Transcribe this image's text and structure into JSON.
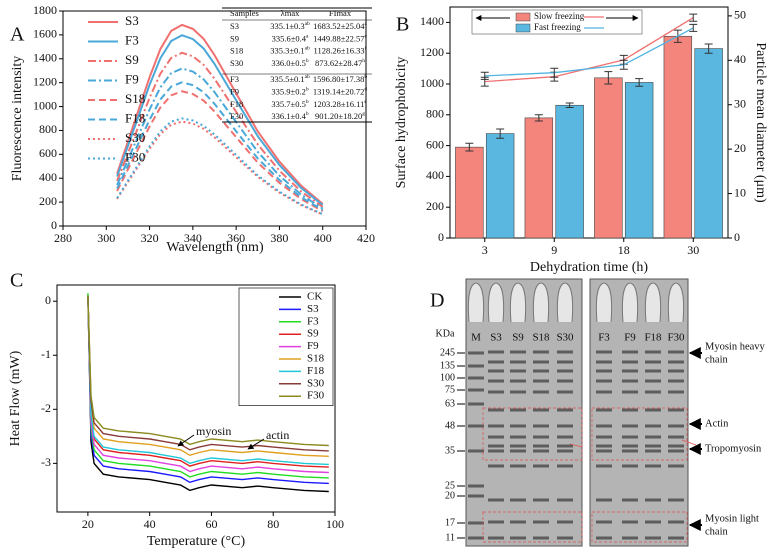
{
  "chart_data": [
    {
      "type": "line",
      "panel": "A",
      "xlabel": "Wavelength (nm)",
      "ylabel": "Fluorescence intensity",
      "x": [
        305,
        310,
        315,
        320,
        325,
        330,
        335,
        340,
        345,
        350,
        360,
        370,
        380,
        390,
        400
      ],
      "xlim": [
        280,
        420
      ],
      "xticks": [
        280,
        300,
        320,
        340,
        360,
        380,
        400,
        420
      ],
      "ylim": [
        0,
        1800
      ],
      "yticks": [
        0,
        200,
        400,
        600,
        800,
        1000,
        1200,
        1400,
        1600,
        1800
      ],
      "legend": "upper left",
      "series": [
        {
          "name": "S3",
          "color": "#f07070",
          "linestyle": "solid",
          "values": [
            438,
            707,
            977,
            1246,
            1482,
            1633,
            1684,
            1650,
            1566,
            1431,
            1111,
            791,
            539,
            337,
            185
          ]
        },
        {
          "name": "F3",
          "color": "#4aa8d8",
          "linestyle": "solid",
          "values": [
            415,
            671,
            926,
            1182,
            1405,
            1549,
            1597,
            1565,
            1485,
            1357,
            1054,
            751,
            511,
            319,
            176
          ]
        },
        {
          "name": "S9",
          "color": "#f07070",
          "linestyle": "dashdot",
          "values": [
            377,
            609,
            841,
            1073,
            1276,
            1407,
            1450,
            1421,
            1349,
            1233,
            957,
            682,
            464,
            290,
            160
          ]
        },
        {
          "name": "F9",
          "color": "#4aa8d8",
          "linestyle": "dashdot",
          "values": [
            343,
            554,
            765,
            976,
            1161,
            1279,
            1319,
            1293,
            1227,
            1121,
            871,
            620,
            422,
            264,
            145
          ]
        },
        {
          "name": "S18",
          "color": "#f07070",
          "linestyle": "dashed",
          "values": [
            293,
            474,
            654,
            835,
            993,
            1094,
            1128,
            1105,
            1049,
            959,
            744,
            530,
            361,
            226,
            124
          ]
        },
        {
          "name": "F18",
          "color": "#4aa8d8",
          "linestyle": "dashed",
          "values": [
            313,
            505,
            698,
            890,
            1059,
            1167,
            1203,
            1179,
            1119,
            1023,
            794,
            565,
            385,
            241,
            132
          ]
        },
        {
          "name": "S30",
          "color": "#f07070",
          "linestyle": "dotted",
          "values": [
            227,
            367,
            507,
            647,
            769,
            848,
            874,
            857,
            813,
            743,
            577,
            411,
            280,
            175,
            96
          ]
        },
        {
          "name": "F30",
          "color": "#4aa8d8",
          "linestyle": "dotted",
          "values": [
            234,
            378,
            523,
            667,
            793,
            874,
            901,
            883,
            838,
            766,
            595,
            423,
            288,
            180,
            99
          ]
        }
      ],
      "table": {
        "columns": [
          "Samples",
          "λmax",
          "FImax"
        ],
        "rows": [
          {
            "sample": "S3",
            "lambda": "335.1±0.3",
            "lambda_sup": "ab",
            "fi": "1683.52±25.04",
            "fi_sup": "a"
          },
          {
            "sample": "S9",
            "lambda": "335.6±0.4",
            "lambda_sup": "a",
            "fi": "1449.88±22.57",
            "fi_sup": "c"
          },
          {
            "sample": "S18",
            "lambda": "335.3±0.1",
            "lambda_sup": "ab",
            "fi": "1128.26±16.33",
            "fi_sup": "f"
          },
          {
            "sample": "S30",
            "lambda": "336.0±0.5",
            "lambda_sup": "b",
            "fi": "873.62±28.47",
            "fi_sup": "h"
          },
          {
            "sample": "F3",
            "lambda": "335.5±0.1",
            "lambda_sup": "ab",
            "fi": "1596.80±17.38",
            "fi_sup": "b"
          },
          {
            "sample": "F9",
            "lambda": "335.9±0.2",
            "lambda_sup": "b",
            "fi": "1319.14±20.72",
            "fi_sup": "d"
          },
          {
            "sample": "F18",
            "lambda": "335.7±0.5",
            "lambda_sup": "b",
            "fi": "1203.28±16.11",
            "fi_sup": "e"
          },
          {
            "sample": "F30",
            "lambda": "336.1±0.4",
            "lambda_sup": "b",
            "fi": "901.20±18.20",
            "fi_sup": "g"
          }
        ]
      }
    },
    {
      "type": "bar",
      "panel": "B",
      "xlabel": "Dehydration time (h)",
      "ylabel": "Surface hydrophobicity",
      "y2label": "Particle mean diameter (μm)",
      "categories": [
        "3",
        "9",
        "18",
        "30"
      ],
      "ylim": [
        0,
        1500
      ],
      "yticks": [
        0,
        200,
        400,
        600,
        800,
        1000,
        1200,
        1400
      ],
      "y2lim": [
        0,
        52
      ],
      "y2ticks": [
        0,
        10,
        20,
        30,
        40,
        50
      ],
      "legend": "upper left",
      "series": [
        {
          "name": "Slow freezing",
          "type": "bar",
          "color": "#f4857c",
          "values": [
            590,
            780,
            1040,
            1310
          ],
          "errors": [
            25,
            20,
            40,
            40
          ]
        },
        {
          "name": "Fast freezing",
          "type": "bar",
          "color": "#5ab7e0",
          "values": [
            678,
            862,
            1010,
            1230
          ],
          "errors": [
            30,
            15,
            25,
            30
          ]
        },
        {
          "type": "line",
          "axis": "y2",
          "color": "#f07070",
          "values": [
            35.2,
            36.3,
            40.1,
            49.6
          ],
          "errors": [
            1,
            1,
            1,
            0.8
          ]
        },
        {
          "type": "line",
          "axis": "y2",
          "color": "#50b4e0",
          "values": [
            36.5,
            37.2,
            39.0,
            47.3
          ],
          "errors": [
            0.8,
            1,
            1,
            0.8
          ]
        }
      ]
    },
    {
      "type": "line",
      "panel": "C",
      "xlabel": "Temperature (°C)",
      "ylabel": "Heat Flow (mW)",
      "x": [
        20,
        21,
        22,
        25,
        30,
        40,
        45,
        50,
        53,
        56,
        60,
        70,
        75,
        80,
        90,
        98
      ],
      "xlim": [
        10,
        100
      ],
      "xticks": [
        20,
        40,
        60,
        80,
        100
      ],
      "ylim": [
        -3.9,
        0.3
      ],
      "yticks": [
        -3,
        -2,
        -1,
        0
      ],
      "legend": "upper right",
      "annotations": [
        "myosin",
        "actin"
      ],
      "series": [
        {
          "name": "CK",
          "color": "#000000",
          "linestyle": "solid",
          "values": [
            0.1,
            -2.6,
            -3.0,
            -3.2,
            -3.25,
            -3.3,
            -3.35,
            -3.4,
            -3.5,
            -3.45,
            -3.4,
            -3.45,
            -3.42,
            -3.45,
            -3.5,
            -3.52
          ]
        },
        {
          "name": "S3",
          "color": "#1a1aff",
          "linestyle": "solid",
          "values": [
            0.1,
            -2.45,
            -2.85,
            -3.05,
            -3.1,
            -3.15,
            -3.2,
            -3.25,
            -3.35,
            -3.3,
            -3.25,
            -3.3,
            -3.27,
            -3.3,
            -3.35,
            -3.37
          ]
        },
        {
          "name": "F3",
          "color": "#22dd22",
          "linestyle": "solid",
          "values": [
            0.15,
            -2.35,
            -2.75,
            -2.95,
            -3.0,
            -3.05,
            -3.1,
            -3.15,
            -3.25,
            -3.2,
            -3.15,
            -3.2,
            -3.17,
            -3.2,
            -3.25,
            -3.27
          ]
        },
        {
          "name": "S9",
          "color": "#e02020",
          "linestyle": "solid",
          "values": [
            0.1,
            -2.15,
            -2.55,
            -2.75,
            -2.8,
            -2.85,
            -2.9,
            -2.95,
            -3.05,
            -3.0,
            -2.95,
            -3.0,
            -2.97,
            -3.0,
            -3.05,
            -3.07
          ]
        },
        {
          "name": "F9",
          "color": "#e040e0",
          "linestyle": "solid",
          "values": [
            0.1,
            -2.25,
            -2.65,
            -2.85,
            -2.9,
            -2.95,
            -3.0,
            -3.05,
            -3.15,
            -3.1,
            -3.05,
            -3.1,
            -3.07,
            -3.1,
            -3.15,
            -3.17
          ]
        },
        {
          "name": "S18",
          "color": "#e0a020",
          "linestyle": "solid",
          "values": [
            0.1,
            -1.95,
            -2.35,
            -2.55,
            -2.6,
            -2.65,
            -2.7,
            -2.75,
            -2.85,
            -2.8,
            -2.75,
            -2.8,
            -2.77,
            -2.8,
            -2.85,
            -2.87
          ]
        },
        {
          "name": "F18",
          "color": "#20c8d8",
          "linestyle": "solid",
          "values": [
            0.1,
            -2.1,
            -2.5,
            -2.7,
            -2.75,
            -2.8,
            -2.85,
            -2.9,
            -3.0,
            -2.95,
            -2.9,
            -2.95,
            -2.92,
            -2.95,
            -3.0,
            -3.02
          ]
        },
        {
          "name": "S30",
          "color": "#8b3a3a",
          "linestyle": "solid",
          "values": [
            0.1,
            -1.85,
            -2.25,
            -2.45,
            -2.5,
            -2.55,
            -2.6,
            -2.65,
            -2.75,
            -2.7,
            -2.65,
            -2.7,
            -2.67,
            -2.7,
            -2.75,
            -2.77
          ]
        },
        {
          "name": "F30",
          "color": "#8b8b20",
          "linestyle": "solid",
          "values": [
            0.1,
            -1.75,
            -2.15,
            -2.35,
            -2.4,
            -2.45,
            -2.5,
            -2.55,
            -2.65,
            -2.6,
            -2.55,
            -2.6,
            -2.57,
            -2.6,
            -2.65,
            -2.67
          ]
        }
      ]
    }
  ],
  "gel": {
    "panel": "D",
    "unit": "KDa",
    "lanes_left": [
      "M",
      "S3",
      "S9",
      "S18",
      "S30"
    ],
    "lanes_right": [
      "F3",
      "F9",
      "F18",
      "F30"
    ],
    "markers": [
      245,
      135,
      100,
      75,
      63,
      48,
      35,
      25,
      20,
      17,
      11
    ],
    "annotations": [
      [
        "Myosin heavy",
        "chain"
      ],
      [
        "Actin"
      ],
      [
        "Tropomyosin"
      ],
      [
        "Myosin light",
        "chain"
      ]
    ]
  }
}
